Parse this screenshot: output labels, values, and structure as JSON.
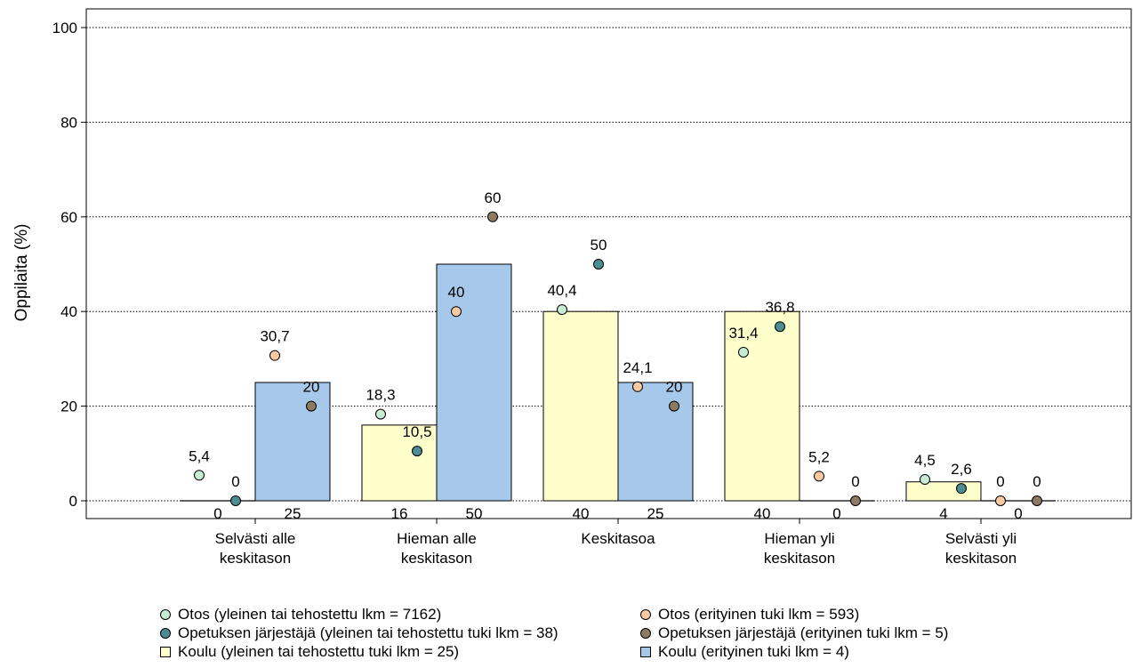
{
  "chart_data": {
    "type": "bar",
    "ylabel": "Oppilaita (%)",
    "ylim": [
      0,
      100
    ],
    "yticks": [
      "0",
      "20",
      "40",
      "60",
      "80",
      "100"
    ],
    "grid": "horizontal-dotted",
    "legend_position": "bottom",
    "categories": [
      [
        "Selvästi alle",
        "keskitason"
      ],
      [
        "Hieman alle",
        "keskitason"
      ],
      [
        "Keskitasoa"
      ],
      [
        "Hieman yli",
        "keskitason"
      ],
      [
        "Selvästi yli",
        "keskitason"
      ]
    ],
    "bar_series": [
      {
        "name": "Koulu (yleinen tai tehostettu tuki lkm = 25)",
        "color": "#ffffcc",
        "values": [
          0,
          16,
          40,
          40,
          4
        ],
        "labels": [
          "0",
          "16",
          "40",
          "40",
          "4"
        ]
      },
      {
        "name": "Koulu (erityinen tuki lkm = 4)",
        "color": "#a6c8ea",
        "values": [
          25,
          50,
          25,
          0,
          0
        ],
        "labels": [
          "25",
          "50",
          "25",
          "0",
          "0"
        ]
      }
    ],
    "point_series": [
      {
        "name": "Otos (yleinen tai tehostettu lkm = 7162)",
        "color": "#c7ecd3",
        "values": [
          5.4,
          18.3,
          40.4,
          31.4,
          4.5
        ],
        "labels": [
          "5,4",
          "18,3",
          "40,4",
          "31,4",
          "4,5"
        ]
      },
      {
        "name": "Opetuksen järjestäjä (yleinen tai tehostettu tuki lkm = 38)",
        "color": "#4d8c93",
        "values": [
          0,
          10.5,
          50,
          36.8,
          2.6
        ],
        "labels": [
          "0",
          "10,5",
          "50",
          "36,8",
          "2,6"
        ]
      },
      {
        "name": "Otos (erityinen tuki lkm = 593)",
        "color": "#f9c9a3",
        "values": [
          30.7,
          40,
          24.1,
          5.2,
          0
        ],
        "labels": [
          "30,7",
          "40",
          "24,1",
          "5,2",
          "0"
        ]
      },
      {
        "name": "Opetuksen järjestäjä (erityinen tuki lkm = 5)",
        "color": "#8c7b62",
        "values": [
          20,
          60,
          20,
          0,
          0
        ],
        "labels": [
          "20",
          "60",
          "20",
          "0",
          "0"
        ]
      }
    ]
  },
  "legend": [
    {
      "label": "Otos (yleinen tai tehostettu lkm = 7162)",
      "shape": "circle",
      "color": "#c7ecd3"
    },
    {
      "label": "Otos (erityinen tuki lkm = 593)",
      "shape": "circle",
      "color": "#f9c9a3"
    },
    {
      "label": "Opetuksen järjestäjä (yleinen tai tehostettu tuki lkm = 38)",
      "shape": "circle",
      "color": "#4d8c93"
    },
    {
      "label": "Opetuksen järjestäjä (erityinen tuki lkm = 5)",
      "shape": "circle",
      "color": "#8c7b62"
    },
    {
      "label": "Koulu (yleinen tai tehostettu tuki lkm = 25)",
      "shape": "square",
      "color": "#ffffcc"
    },
    {
      "label": "Koulu (erityinen tuki lkm = 4)",
      "shape": "square",
      "color": "#a6c8ea"
    }
  ]
}
